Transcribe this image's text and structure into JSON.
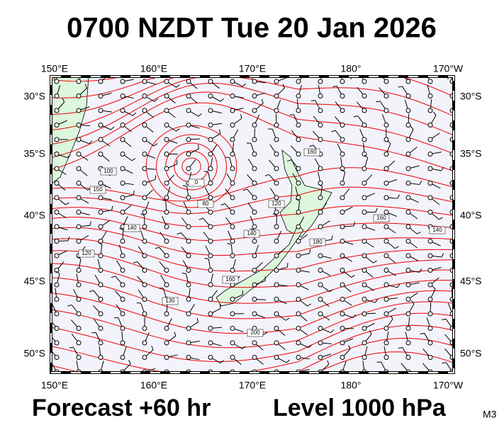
{
  "title": "0700 NZDT Tue 20 Jan 2026",
  "map": {
    "longitude_labels": [
      "150°E",
      "160°E",
      "170°E",
      "180°",
      "170°W"
    ],
    "latitude_labels": [
      "30°S",
      "35°S",
      "40°S",
      "45°S",
      "50°S"
    ],
    "contour_labels": [
      "100",
      "150",
      "140",
      "120",
      "60",
      "0",
      "120",
      "140",
      "160",
      "180",
      "160",
      "140",
      "200",
      "130",
      "160"
    ]
  },
  "footer": {
    "forecast": "Forecast +60 hr",
    "level": "Level 1000 hPa",
    "model": "M3"
  }
}
